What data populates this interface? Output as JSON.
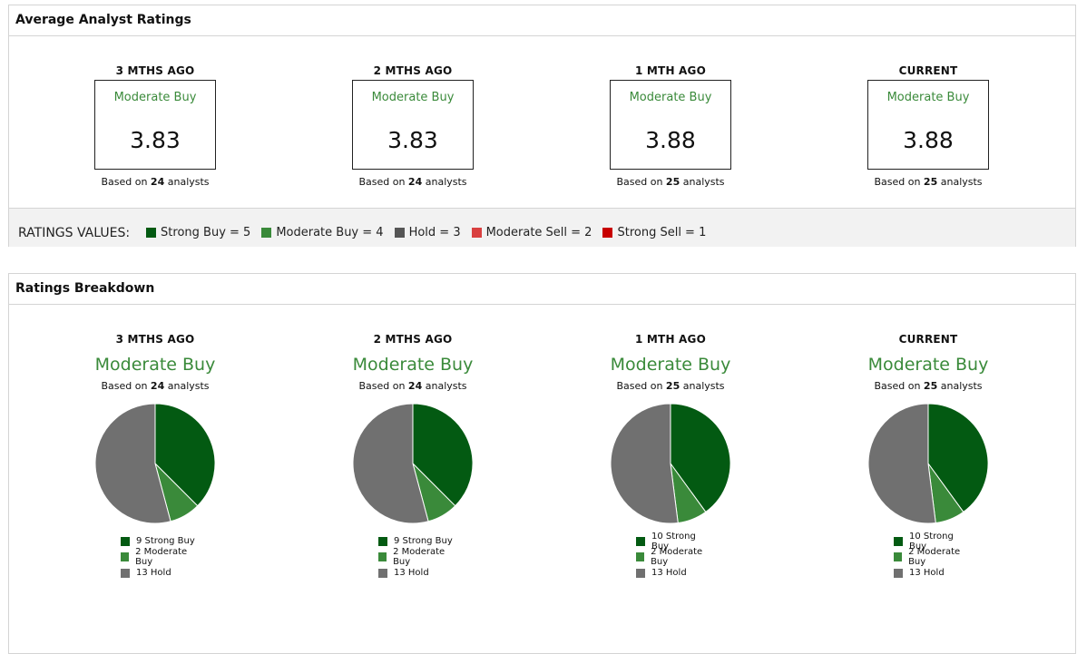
{
  "colors": {
    "strong_buy": "#035a12",
    "moderate_buy": "#3a8a3a",
    "hold": "#707070",
    "moderate_sell": "#d94040",
    "strong_sell": "#c80000"
  },
  "avg_panel": {
    "title": "Average Analyst Ratings",
    "periods": [
      {
        "label": "3 MTHS AGO",
        "rating": "Moderate Buy",
        "value": "3.83",
        "based_prefix": "Based on",
        "analysts": "24",
        "based_suffix": "analysts"
      },
      {
        "label": "2 MTHS AGO",
        "rating": "Moderate Buy",
        "value": "3.83",
        "based_prefix": "Based on",
        "analysts": "24",
        "based_suffix": "analysts"
      },
      {
        "label": "1 MTH AGO",
        "rating": "Moderate Buy",
        "value": "3.88",
        "based_prefix": "Based on",
        "analysts": "25",
        "based_suffix": "analysts"
      },
      {
        "label": "CURRENT",
        "rating": "Moderate Buy",
        "value": "3.88",
        "based_prefix": "Based on",
        "analysts": "25",
        "based_suffix": "analysts"
      }
    ],
    "ratings_values_label": "RATINGS VALUES:",
    "ratings_values": [
      {
        "label": "Strong Buy = 5",
        "color": "#035a12"
      },
      {
        "label": "Moderate Buy = 4",
        "color": "#3a8a3a"
      },
      {
        "label": "Hold = 3",
        "color": "#555555"
      },
      {
        "label": "Moderate Sell = 2",
        "color": "#d94040"
      },
      {
        "label": "Strong Sell = 1",
        "color": "#c80000"
      }
    ]
  },
  "breakdown_panel": {
    "title": "Ratings Breakdown",
    "periods": [
      {
        "label": "3 MTHS AGO",
        "rating": "Moderate Buy",
        "based_prefix": "Based on",
        "analysts": "24",
        "based_suffix": "analysts",
        "legend": [
          "9 Strong Buy",
          "2 Moderate Buy",
          "13 Hold"
        ]
      },
      {
        "label": "2 MTHS AGO",
        "rating": "Moderate Buy",
        "based_prefix": "Based on",
        "analysts": "24",
        "based_suffix": "analysts",
        "legend": [
          "9 Strong Buy",
          "2 Moderate Buy",
          "13 Hold"
        ]
      },
      {
        "label": "1 MTH AGO",
        "rating": "Moderate Buy",
        "based_prefix": "Based on",
        "analysts": "25",
        "based_suffix": "analysts",
        "legend": [
          "10 Strong Buy",
          "2 Moderate Buy",
          "13 Hold"
        ]
      },
      {
        "label": "CURRENT",
        "rating": "Moderate Buy",
        "based_prefix": "Based on",
        "analysts": "25",
        "based_suffix": "analysts",
        "legend": [
          "10 Strong Buy",
          "2 Moderate Buy",
          "13 Hold"
        ]
      }
    ]
  },
  "chart_data": [
    {
      "type": "pie",
      "categories": [
        "Strong Buy",
        "Moderate Buy",
        "Hold"
      ],
      "values": [
        9,
        2,
        13
      ]
    },
    {
      "type": "pie",
      "categories": [
        "Strong Buy",
        "Moderate Buy",
        "Hold"
      ],
      "values": [
        9,
        2,
        13
      ]
    },
    {
      "type": "pie",
      "categories": [
        "Strong Buy",
        "Moderate Buy",
        "Hold"
      ],
      "values": [
        10,
        2,
        13
      ]
    },
    {
      "type": "pie",
      "categories": [
        "Strong Buy",
        "Moderate Buy",
        "Hold"
      ],
      "values": [
        10,
        2,
        13
      ]
    }
  ]
}
